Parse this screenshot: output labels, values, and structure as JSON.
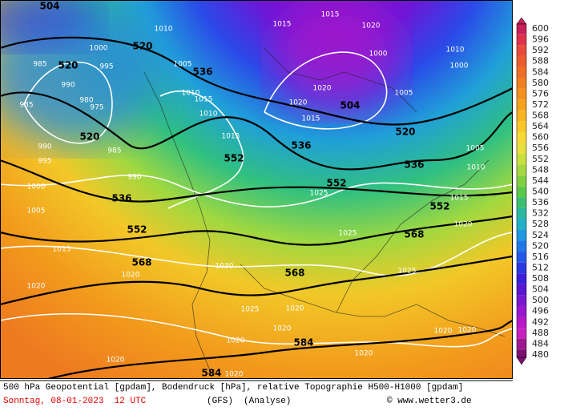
{
  "map": {
    "contour_labels": [
      "504",
      "520",
      "520",
      "536",
      "520",
      "504",
      "536",
      "520",
      "536",
      "552",
      "552",
      "552",
      "536",
      "552",
      "568",
      "568",
      "568",
      "584",
      "584"
    ],
    "isobar_labels": [
      "1010",
      "1015",
      "1015",
      "1020",
      "1000",
      "995",
      "985",
      "990",
      "985",
      "980",
      "975",
      "1005",
      "1010",
      "1015",
      "1010",
      "1015",
      "1020",
      "1015",
      "1005",
      "1010",
      "1000",
      "990",
      "995",
      "985",
      "990",
      "1000",
      "1005",
      "1015",
      "1020",
      "1020",
      "1030",
      "1025",
      "1025",
      "1025",
      "1025",
      "1020",
      "1020",
      "1020",
      "1020",
      "1020",
      "1020",
      "1020",
      "1020",
      "1020",
      "1005",
      "1010",
      "1015",
      "1000",
      "1020"
    ]
  },
  "colorbar": {
    "ticks": [
      600,
      596,
      592,
      588,
      584,
      580,
      576,
      572,
      568,
      564,
      560,
      556,
      552,
      548,
      544,
      540,
      536,
      532,
      528,
      524,
      520,
      516,
      512,
      508,
      504,
      500,
      496,
      492,
      488,
      484,
      480
    ],
    "colors": [
      "#c71f5a",
      "#e0314a",
      "#e84a3a",
      "#ec5c2e",
      "#ee6e26",
      "#f07f20",
      "#f2901c",
      "#f4a21c",
      "#f6b420",
      "#f8c628",
      "#f6d836",
      "#e6e040",
      "#c8e040",
      "#a6d840",
      "#80d040",
      "#5ac848",
      "#3ac070",
      "#2ab8a0",
      "#20b0c8",
      "#2098e0",
      "#2078e8",
      "#2458e8",
      "#2a38e0",
      "#3a20d8",
      "#5818d0",
      "#7818d0",
      "#9818d0",
      "#b818c8",
      "#c820c0",
      "#a01890",
      "#7a1070"
    ]
  },
  "footer": {
    "title": "500 hPa Geopotential [gpdam], Bodendruck [hPa], relative Topographie H500-H1000 [gpdam]",
    "date": "Sonntag, 08-01-2023  12 UTC",
    "model": "(GFS)",
    "run": "(Analyse)",
    "copyright": "© www.wetter3.de"
  }
}
